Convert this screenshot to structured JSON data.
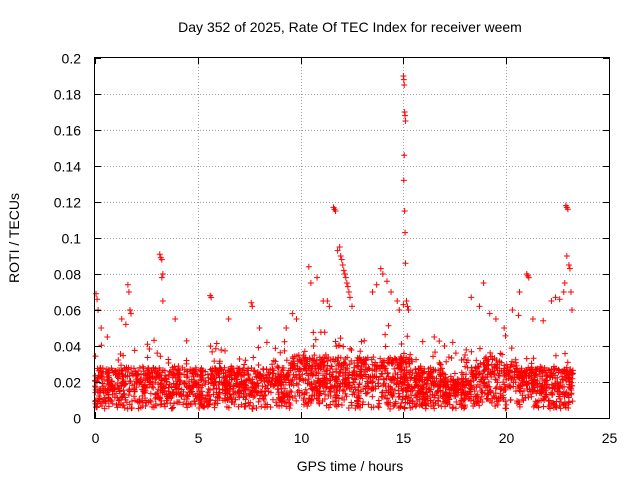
{
  "chart_data": {
    "type": "scatter",
    "title": "Day 352 of 2025, Rate Of TEC Index for receiver weem",
    "xlabel": "GPS time / hours",
    "ylabel": "ROTI / TECUs",
    "xlim": [
      0,
      25
    ],
    "ylim": [
      0,
      0.2
    ],
    "x_ticks": [
      0,
      5,
      10,
      15,
      20,
      25
    ],
    "x_tick_labels": [
      "0",
      "5",
      "10",
      "15",
      "20",
      "25"
    ],
    "y_ticks": [
      0,
      0.02,
      0.04,
      0.06,
      0.08,
      0.1,
      0.12,
      0.14,
      0.16,
      0.18,
      0.2
    ],
    "y_tick_labels": [
      "0",
      "0.02",
      "0.04",
      "0.06",
      "0.08",
      "0.1",
      "0.12",
      "0.14",
      "0.16",
      "0.18",
      "0.2"
    ],
    "grid": true,
    "marker": "+",
    "series": [
      {
        "name": "ROTI",
        "color": "#ff0000",
        "x_range_hours": [
          0,
          23.25
        ],
        "baseline_band": [
          0.005,
          0.035
        ],
        "points": [
          [
            0.05,
            0.069
          ],
          [
            0.1,
            0.066
          ],
          [
            0.15,
            0.06
          ],
          [
            0.3,
            0.05
          ],
          [
            0.6,
            0.045
          ],
          [
            1.3,
            0.055
          ],
          [
            1.5,
            0.052
          ],
          [
            1.6,
            0.074
          ],
          [
            1.65,
            0.07
          ],
          [
            1.7,
            0.06
          ],
          [
            1.75,
            0.058
          ],
          [
            3.15,
            0.091
          ],
          [
            3.2,
            0.089
          ],
          [
            3.25,
            0.088
          ],
          [
            3.3,
            0.08
          ],
          [
            3.25,
            0.078
          ],
          [
            3.3,
            0.065
          ],
          [
            3.9,
            0.055
          ],
          [
            5.6,
            0.068
          ],
          [
            5.65,
            0.067
          ],
          [
            6.5,
            0.055
          ],
          [
            7.6,
            0.064
          ],
          [
            7.65,
            0.062
          ],
          [
            8.0,
            0.05
          ],
          [
            9.3,
            0.05
          ],
          [
            9.6,
            0.058
          ],
          [
            9.8,
            0.055
          ],
          [
            10.4,
            0.084
          ],
          [
            10.5,
            0.075
          ],
          [
            10.8,
            0.078
          ],
          [
            11.1,
            0.065
          ],
          [
            11.3,
            0.065
          ],
          [
            11.4,
            0.062
          ],
          [
            11.6,
            0.117
          ],
          [
            11.65,
            0.116
          ],
          [
            11.7,
            0.115
          ],
          [
            11.8,
            0.093
          ],
          [
            11.9,
            0.095
          ],
          [
            11.95,
            0.09
          ],
          [
            12.0,
            0.088
          ],
          [
            12.05,
            0.085
          ],
          [
            12.1,
            0.082
          ],
          [
            12.15,
            0.08
          ],
          [
            12.2,
            0.078
          ],
          [
            12.25,
            0.075
          ],
          [
            12.3,
            0.073
          ],
          [
            12.35,
            0.07
          ],
          [
            12.4,
            0.067
          ],
          [
            12.5,
            0.062
          ],
          [
            13.5,
            0.07
          ],
          [
            13.7,
            0.074
          ],
          [
            13.9,
            0.083
          ],
          [
            14.0,
            0.08
          ],
          [
            14.2,
            0.076
          ],
          [
            14.4,
            0.07
          ],
          [
            14.7,
            0.065
          ],
          [
            14.8,
            0.06
          ],
          [
            15.0,
            0.19
          ],
          [
            15.02,
            0.188
          ],
          [
            15.04,
            0.185
          ],
          [
            15.06,
            0.17
          ],
          [
            15.08,
            0.168
          ],
          [
            15.1,
            0.165
          ],
          [
            15.04,
            0.146
          ],
          [
            15.02,
            0.132
          ],
          [
            15.06,
            0.115
          ],
          [
            15.08,
            0.103
          ],
          [
            15.1,
            0.086
          ],
          [
            15.15,
            0.065
          ],
          [
            15.2,
            0.062
          ],
          [
            15.25,
            0.06
          ],
          [
            15.0,
            0.063
          ],
          [
            16.5,
            0.045
          ],
          [
            17.0,
            0.04
          ],
          [
            17.4,
            0.042
          ],
          [
            18.0,
            0.035
          ],
          [
            18.3,
            0.067
          ],
          [
            18.7,
            0.062
          ],
          [
            18.9,
            0.075
          ],
          [
            19.2,
            0.058
          ],
          [
            19.5,
            0.055
          ],
          [
            19.9,
            0.05
          ],
          [
            20.3,
            0.06
          ],
          [
            20.6,
            0.057
          ],
          [
            20.65,
            0.07
          ],
          [
            21.0,
            0.08
          ],
          [
            21.05,
            0.079
          ],
          [
            21.1,
            0.078
          ],
          [
            21.3,
            0.055
          ],
          [
            21.8,
            0.054
          ],
          [
            22.2,
            0.065
          ],
          [
            22.4,
            0.067
          ],
          [
            22.6,
            0.066
          ],
          [
            22.8,
            0.07
          ],
          [
            22.85,
            0.075
          ],
          [
            22.9,
            0.118
          ],
          [
            22.95,
            0.117
          ],
          [
            23.0,
            0.116
          ],
          [
            22.95,
            0.09
          ],
          [
            23.05,
            0.085
          ],
          [
            23.1,
            0.083
          ],
          [
            23.15,
            0.07
          ],
          [
            23.2,
            0.06
          ]
        ]
      }
    ]
  }
}
